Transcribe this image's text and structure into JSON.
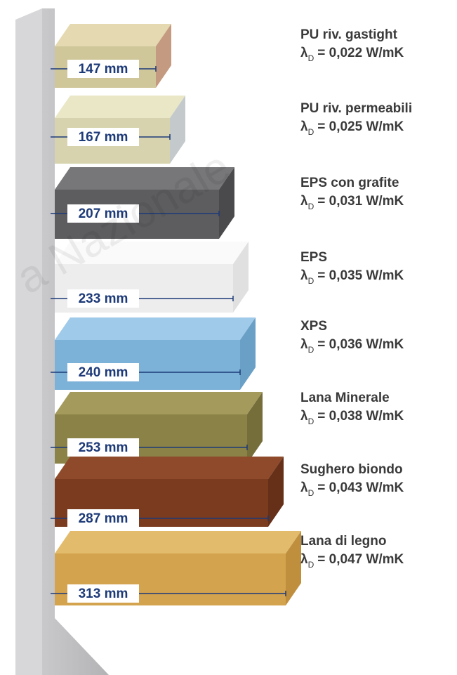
{
  "watermark": "a Nazionale",
  "lambda_symbol": "λ",
  "lambda_subscript": "D",
  "materials": [
    {
      "thickness": "147 mm",
      "name": "PU riv. gastight",
      "lambda": "= 0,022 W/mK"
    },
    {
      "thickness": "167 mm",
      "name": "PU riv. permeabili",
      "lambda": "= 0,025 W/mK"
    },
    {
      "thickness": "207 mm",
      "name": "EPS con grafite",
      "lambda": "= 0,031 W/mK"
    },
    {
      "thickness": "233 mm",
      "name": "EPS",
      "lambda": "= 0,035 W/mK"
    },
    {
      "thickness": "240 mm",
      "name": "XPS",
      "lambda": "= 0,036 W/mK"
    },
    {
      "thickness": "253 mm",
      "name": "Lana Minerale",
      "lambda": "= 0,038 W/mK"
    },
    {
      "thickness": "287 mm",
      "name": "Sughero biondo",
      "lambda": "= 0,043 W/mK"
    },
    {
      "thickness": "313 mm",
      "name": "Lana di legno",
      "lambda": "= 0,047 W/mK"
    }
  ]
}
